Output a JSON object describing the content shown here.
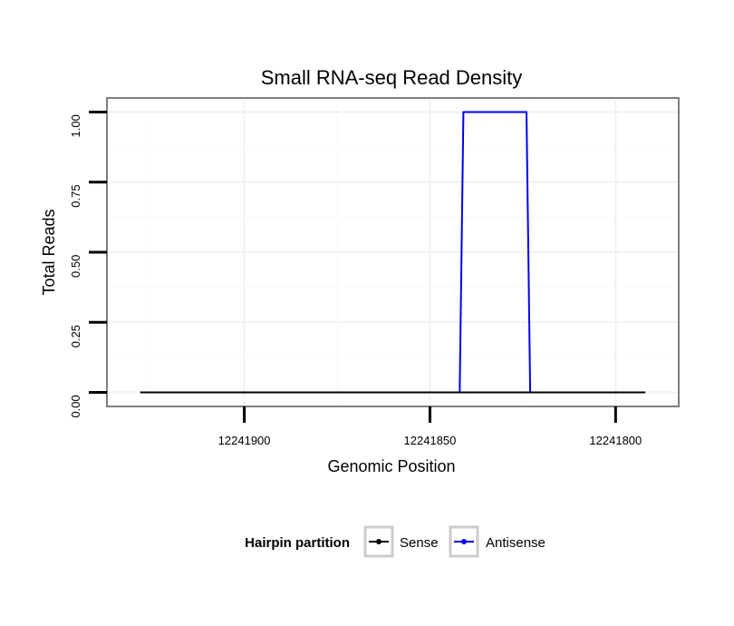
{
  "chart_data": {
    "type": "line",
    "title": "Small RNA-seq Read Density",
    "xlabel": "Genomic Position",
    "ylabel": "Total Reads",
    "x_reversed": true,
    "xlim": [
      12241937,
      12241783
    ],
    "ylim": [
      -0.05,
      1.05
    ],
    "x_ticks": [
      12241900,
      12241850,
      12241800
    ],
    "x_tick_labels": [
      "12241900",
      "12241850",
      "12241800"
    ],
    "y_ticks": [
      0,
      0.25,
      0.5,
      0.75,
      1.0
    ],
    "y_tick_labels": [
      "0.00",
      "0.25",
      "0.50",
      "0.75",
      "1.00"
    ],
    "grid": true,
    "legend_title": "Hairpin partition",
    "legend_position": "bottom",
    "series": [
      {
        "name": "Sense",
        "color": "#000000",
        "x": [
          12241928,
          12241792
        ],
        "y": [
          0,
          0
        ]
      },
      {
        "name": "Antisense",
        "color": "#0000ee",
        "x": [
          12241928,
          12241842,
          12241841,
          12241824,
          12241823,
          12241792
        ],
        "y": [
          0,
          0,
          1,
          1,
          0,
          0
        ]
      }
    ]
  }
}
